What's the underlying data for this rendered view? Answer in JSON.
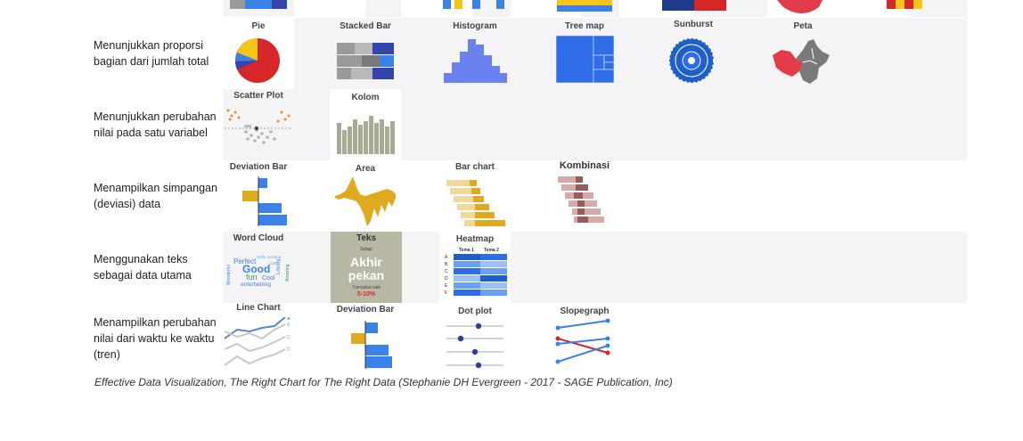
{
  "rows": [
    {
      "label": "Menunjukkan proporsi bagian dari jumlah total",
      "charts": [
        "Pie",
        "Stacked Bar",
        "Histogram",
        "Tree map",
        "Sunburst",
        "Peta"
      ]
    },
    {
      "label": "Menunjukkan perubahan nilai pada satu variabel",
      "charts": [
        "Scatter Plot",
        "Kolom"
      ],
      "scatter_avg_label": "avg"
    },
    {
      "label": "Menampilkan simpangan (deviasi) data",
      "charts": [
        "Deviation Bar",
        "Area",
        "Bar chart",
        "Kombinasi"
      ]
    },
    {
      "label": "Menggunakan teks sebagai data utama",
      "charts": [
        "Word Cloud",
        "Teks",
        "Heatmap"
      ],
      "wordcloud_words": [
        "Good",
        "Perfect",
        "fun",
        "Cool",
        "entertaining",
        "Hello",
        "exciting",
        "cute",
        "Lovely",
        "Wonderful",
        "Amazing"
      ],
      "teks_card": {
        "top": "Setiap",
        "main1": "Akhir",
        "main2": "pekan",
        "sub": "Transaksi naik",
        "pct": "5-10%"
      },
      "heatmap": {
        "cols": [
          "Tema 1",
          "Tema 2"
        ],
        "rows": [
          "A",
          "B",
          "C",
          "D",
          "E",
          "F"
        ]
      }
    },
    {
      "label": "Menampilkan perubahan nilai dari waktu ke waktu (tren)",
      "charts": [
        "Line Chart",
        "Deviation Bar",
        "Dot plot",
        "Slopegraph"
      ],
      "line_labels": [
        "A",
        "B",
        "C",
        "D"
      ]
    }
  ],
  "caption": "Effective Data Visualization, The Right Chart for The Right Data (Stephanie DH Evergreen - 2017 - SAGE Publication, Inc)",
  "colors": {
    "blue": "#3b82e8",
    "yellow": "#f5c518",
    "red": "#d62728",
    "gray": "#9a9a9a",
    "olive": "#a8ab94",
    "gold": "#e0aa20",
    "maroon": "#9b5a5a",
    "background": "#f4f4f6"
  }
}
